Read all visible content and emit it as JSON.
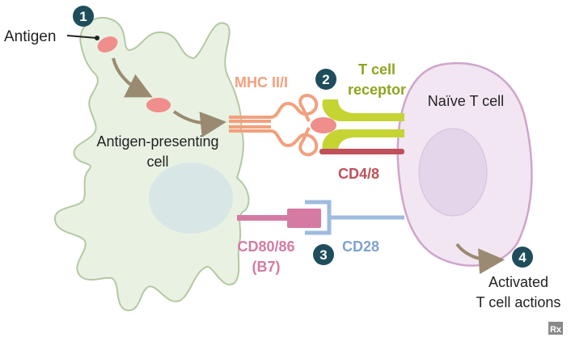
{
  "colors": {
    "apc_fill": "#e9f2e2",
    "apc_stroke": "#b4c8a4",
    "nucleus_fill": "#d8e6e6",
    "tcell_fill": "#f2e6f2",
    "tcell_stroke": "#cfa5cb",
    "tnucleus_fill": "#e5d5ea",
    "antigen_fill": "#ef8e8a",
    "mhc_stroke": "#f2a07e",
    "tcr_fill": "#c6d433",
    "tcr_label": "#8ea51f",
    "cd48_color": "#c0505a",
    "cd8086_color": "#d57ba3",
    "cd28_color": "#9fbbdf",
    "cd28_label": "#7fa2cf",
    "arrow_color": "#9b8a72",
    "badge_fill": "#1e4d5c",
    "text_dark": "#222222"
  },
  "steps": [
    "1",
    "2",
    "3",
    "4"
  ],
  "labels": {
    "antigen": "Antigen",
    "apc_line1": "Antigen-presenting",
    "apc_line2": "cell",
    "mhc": "MHC II/I",
    "tcr_line1": "T cell",
    "tcr_line2": "receptor",
    "naive": "Naïve T cell",
    "cd48": "CD4/8",
    "cd8086_line1": "CD80/86",
    "cd8086_line2": "(B7)",
    "cd28": "CD28",
    "activated_line1": "Activated",
    "activated_line2": "T cell actions",
    "logo": "Rx"
  }
}
